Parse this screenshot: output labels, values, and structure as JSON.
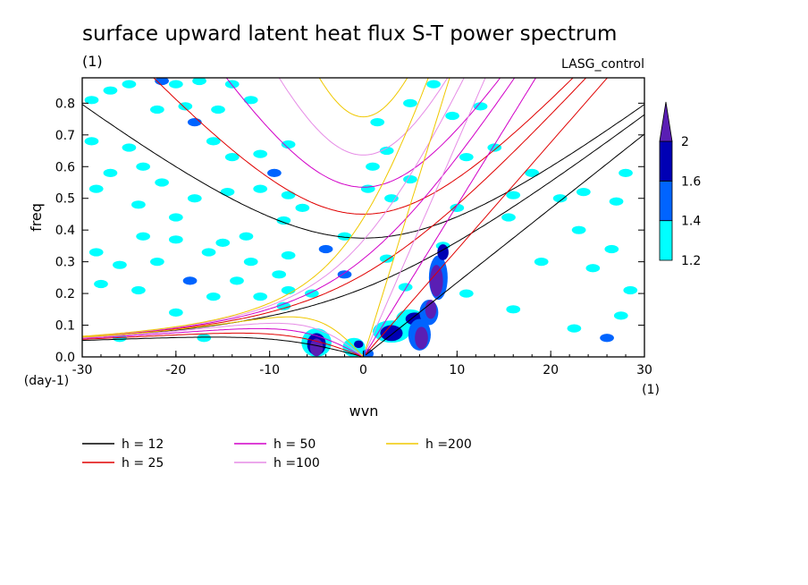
{
  "chart_data": {
    "type": "contour",
    "title": "surface upward latent heat flux S-T power spectrum",
    "units_label": "(1)",
    "model_label": "LASG_control",
    "xlabel": "wvn",
    "ylabel": "freq",
    "x_units": "(1)",
    "y_units": "(day-1)",
    "xlim": [
      -30,
      30
    ],
    "ylim": [
      0,
      0.88
    ],
    "x_ticks": [
      -30,
      -20,
      -10,
      0,
      10,
      20,
      30
    ],
    "x_tick_labels": [
      "-30",
      "-20",
      "-10",
      "0",
      "10",
      "20",
      "30"
    ],
    "y_ticks": [
      0,
      0.1,
      0.2,
      0.3,
      0.4,
      0.5,
      0.6,
      0.7,
      0.8
    ],
    "y_tick_labels": [
      "0.0",
      "0.1",
      "0.2",
      "0.3",
      "0.4",
      "0.5",
      "0.6",
      "0.7",
      "0.8"
    ],
    "colorbar": {
      "levels": [
        1.2,
        1.4,
        1.6,
        2
      ],
      "labels": [
        "1.2",
        "1.4",
        "1.6",
        "2"
      ],
      "colors": [
        "#00ffff",
        "#0064ff",
        "#0000b4",
        "#5a1eb4"
      ]
    },
    "dispersion_curves": [
      {
        "label": "h = 12",
        "h": 12,
        "color": "#000000"
      },
      {
        "label": "h = 25",
        "h": 25,
        "color": "#e00000"
      },
      {
        "label": "h = 50",
        "h": 50,
        "color": "#d200c8"
      },
      {
        "label": "h =100",
        "h": 100,
        "color": "#e68ce6"
      },
      {
        "label": "h =200",
        "h": 200,
        "color": "#f0c800"
      }
    ],
    "blobs": [
      {
        "x": -27,
        "y": 0.84,
        "lv": 0
      },
      {
        "x": -25,
        "y": 0.86,
        "lv": 0
      },
      {
        "x": -21.5,
        "y": 0.87,
        "lv": 1
      },
      {
        "x": -20,
        "y": 0.86,
        "lv": 0
      },
      {
        "x": -17.5,
        "y": 0.87,
        "lv": 0
      },
      {
        "x": -14,
        "y": 0.86,
        "lv": 0
      },
      {
        "x": -29,
        "y": 0.81,
        "lv": 0
      },
      {
        "x": -22,
        "y": 0.78,
        "lv": 0
      },
      {
        "x": -19,
        "y": 0.79,
        "lv": 0
      },
      {
        "x": -18,
        "y": 0.74,
        "lv": 1
      },
      {
        "x": -15.5,
        "y": 0.78,
        "lv": 0
      },
      {
        "x": -12,
        "y": 0.81,
        "lv": 0
      },
      {
        "x": -29,
        "y": 0.68,
        "lv": 0
      },
      {
        "x": -25,
        "y": 0.66,
        "lv": 0
      },
      {
        "x": -16,
        "y": 0.68,
        "lv": 0
      },
      {
        "x": -14,
        "y": 0.63,
        "lv": 0
      },
      {
        "x": -11,
        "y": 0.64,
        "lv": 0
      },
      {
        "x": -9.5,
        "y": 0.58,
        "lv": 1
      },
      {
        "x": -8,
        "y": 0.67,
        "lv": 0
      },
      {
        "x": -27,
        "y": 0.58,
        "lv": 0
      },
      {
        "x": -23.5,
        "y": 0.6,
        "lv": 0
      },
      {
        "x": -21.5,
        "y": 0.55,
        "lv": 0
      },
      {
        "x": -28.5,
        "y": 0.53,
        "lv": 0
      },
      {
        "x": -24,
        "y": 0.48,
        "lv": 0
      },
      {
        "x": -20,
        "y": 0.44,
        "lv": 0
      },
      {
        "x": -18,
        "y": 0.5,
        "lv": 0
      },
      {
        "x": -14.5,
        "y": 0.52,
        "lv": 0
      },
      {
        "x": -11,
        "y": 0.53,
        "lv": 0
      },
      {
        "x": -8,
        "y": 0.51,
        "lv": 0
      },
      {
        "x": -6.5,
        "y": 0.47,
        "lv": 0
      },
      {
        "x": -8.5,
        "y": 0.43,
        "lv": 0
      },
      {
        "x": -4,
        "y": 0.34,
        "lv": 1
      },
      {
        "x": -2,
        "y": 0.38,
        "lv": 0
      },
      {
        "x": -23.5,
        "y": 0.38,
        "lv": 0
      },
      {
        "x": -20,
        "y": 0.37,
        "lv": 0
      },
      {
        "x": -15,
        "y": 0.36,
        "lv": 0
      },
      {
        "x": -12.5,
        "y": 0.38,
        "lv": 0
      },
      {
        "x": -28.5,
        "y": 0.33,
        "lv": 0
      },
      {
        "x": -26,
        "y": 0.29,
        "lv": 0
      },
      {
        "x": -22,
        "y": 0.3,
        "lv": 0
      },
      {
        "x": -16.5,
        "y": 0.33,
        "lv": 0
      },
      {
        "x": -12,
        "y": 0.3,
        "lv": 0
      },
      {
        "x": -8,
        "y": 0.32,
        "lv": 0
      },
      {
        "x": -2,
        "y": 0.26,
        "lv": 1
      },
      {
        "x": -28,
        "y": 0.23,
        "lv": 0
      },
      {
        "x": -24,
        "y": 0.21,
        "lv": 0
      },
      {
        "x": -18.5,
        "y": 0.24,
        "lv": 1
      },
      {
        "x": -13.5,
        "y": 0.24,
        "lv": 0
      },
      {
        "x": -9,
        "y": 0.26,
        "lv": 0
      },
      {
        "x": -16,
        "y": 0.19,
        "lv": 0
      },
      {
        "x": -11,
        "y": 0.19,
        "lv": 0
      },
      {
        "x": -8,
        "y": 0.21,
        "lv": 0
      },
      {
        "x": -5.5,
        "y": 0.2,
        "lv": 0
      },
      {
        "x": -20,
        "y": 0.14,
        "lv": 0
      },
      {
        "x": -8.5,
        "y": 0.16,
        "lv": 0
      },
      {
        "x": 1,
        "y": 0.6,
        "lv": 0
      },
      {
        "x": 2.5,
        "y": 0.65,
        "lv": 0
      },
      {
        "x": 0.5,
        "y": 0.53,
        "lv": 0
      },
      {
        "x": 3,
        "y": 0.5,
        "lv": 0
      },
      {
        "x": 5,
        "y": 0.56,
        "lv": 0
      },
      {
        "x": 5,
        "y": 0.8,
        "lv": 0
      },
      {
        "x": 7.5,
        "y": 0.86,
        "lv": 0
      },
      {
        "x": 1.5,
        "y": 0.74,
        "lv": 0
      },
      {
        "x": 9.5,
        "y": 0.76,
        "lv": 0
      },
      {
        "x": 11,
        "y": 0.63,
        "lv": 0
      },
      {
        "x": 12.5,
        "y": 0.79,
        "lv": 0
      },
      {
        "x": 14,
        "y": 0.66,
        "lv": 0
      },
      {
        "x": 16,
        "y": 0.51,
        "lv": 0
      },
      {
        "x": 18,
        "y": 0.58,
        "lv": 0
      },
      {
        "x": 21,
        "y": 0.5,
        "lv": 0
      },
      {
        "x": 23.5,
        "y": 0.52,
        "lv": 0
      },
      {
        "x": 27,
        "y": 0.49,
        "lv": 0
      },
      {
        "x": 28,
        "y": 0.58,
        "lv": 0
      },
      {
        "x": 23,
        "y": 0.4,
        "lv": 0
      },
      {
        "x": 26.5,
        "y": 0.34,
        "lv": 0
      },
      {
        "x": 19,
        "y": 0.3,
        "lv": 0
      },
      {
        "x": 24.5,
        "y": 0.28,
        "lv": 0
      },
      {
        "x": 28.5,
        "y": 0.21,
        "lv": 0
      },
      {
        "x": 27.5,
        "y": 0.13,
        "lv": 0
      },
      {
        "x": 26,
        "y": 0.06,
        "lv": 1
      },
      {
        "x": 10,
        "y": 0.47,
        "lv": 0
      },
      {
        "x": 8.5,
        "y": 0.35,
        "lv": 0
      },
      {
        "x": 11,
        "y": 0.2,
        "lv": 0
      },
      {
        "x": 15.5,
        "y": 0.44,
        "lv": 0
      },
      {
        "x": 4.5,
        "y": 0.22,
        "lv": 0
      },
      {
        "x": 2.5,
        "y": 0.31,
        "lv": 0
      },
      {
        "x": -26,
        "y": 0.06,
        "lv": 0
      },
      {
        "x": -17,
        "y": 0.06,
        "lv": 0
      },
      {
        "x": 16,
        "y": 0.15,
        "lv": 0
      },
      {
        "x": 22.5,
        "y": 0.09,
        "lv": 0
      },
      {
        "x": -5,
        "y": 0.045,
        "lv": 0,
        "rx": 1.6,
        "ry": 0.045
      },
      {
        "x": -5,
        "y": 0.04,
        "lv": 2,
        "rx": 1.0,
        "ry": 0.035
      },
      {
        "x": -5,
        "y": 0.03,
        "lv": 3,
        "rx": 0.7,
        "ry": 0.028
      },
      {
        "x": -1,
        "y": 0.03,
        "lv": 0,
        "rx": 1.2,
        "ry": 0.03
      },
      {
        "x": -0.5,
        "y": 0.04,
        "lv": 2,
        "rx": 0.5,
        "ry": 0.012
      },
      {
        "x": 3,
        "y": 0.08,
        "lv": 0,
        "rx": 2.0,
        "ry": 0.035
      },
      {
        "x": 3,
        "y": 0.075,
        "lv": 2,
        "rx": 1.2,
        "ry": 0.025
      },
      {
        "x": 5,
        "y": 0.12,
        "lv": 0,
        "rx": 1.5,
        "ry": 0.03
      },
      {
        "x": 5.5,
        "y": 0.12,
        "lv": 2,
        "rx": 1.0,
        "ry": 0.02
      },
      {
        "x": 6,
        "y": 0.07,
        "lv": 1,
        "rx": 1.2,
        "ry": 0.05
      },
      {
        "x": 6.2,
        "y": 0.06,
        "lv": 3,
        "rx": 0.7,
        "ry": 0.035
      },
      {
        "x": 7,
        "y": 0.14,
        "lv": 1,
        "rx": 1.0,
        "ry": 0.04
      },
      {
        "x": 7.2,
        "y": 0.15,
        "lv": 3,
        "rx": 0.6,
        "ry": 0.03
      },
      {
        "x": 8,
        "y": 0.25,
        "lv": 1,
        "rx": 1.0,
        "ry": 0.07
      },
      {
        "x": 7.8,
        "y": 0.24,
        "lv": 3,
        "rx": 0.7,
        "ry": 0.05
      },
      {
        "x": 8.5,
        "y": 0.33,
        "lv": 2,
        "rx": 0.6,
        "ry": 0.025
      },
      {
        "x": 0.5,
        "y": 0.01,
        "lv": 1,
        "rx": 0.6,
        "ry": 0.015
      }
    ]
  }
}
